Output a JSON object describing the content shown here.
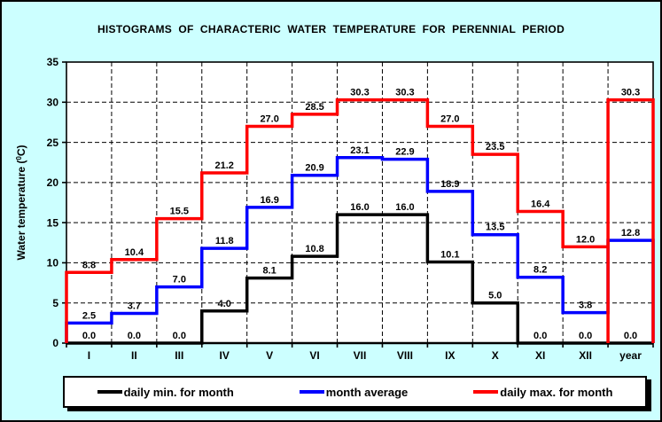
{
  "title": "HISTOGRAMS  OF  CHARACTERIC  WATER  TEMPERATURE  FOR  PERENNIAL  PERIOD",
  "chart_data": {
    "type": "line",
    "subtype": "step-histogram",
    "categories": [
      "I",
      "II",
      "III",
      "IV",
      "V",
      "VI",
      "VII",
      "VIII",
      "IX",
      "X",
      "XI",
      "XII",
      "year"
    ],
    "ylabel": "Water temperature (⁰C)",
    "ylim": [
      0,
      35
    ],
    "yticks": [
      0,
      5,
      10,
      15,
      20,
      25,
      30,
      35
    ],
    "grid": true,
    "legend_position": "bottom",
    "series": [
      {
        "name": "daily min. for month",
        "color": "#000000",
        "values": [
          0.0,
          0.0,
          0.0,
          4.0,
          8.1,
          10.8,
          16.0,
          16.0,
          10.1,
          5.0,
          0.0,
          0.0,
          0.0
        ]
      },
      {
        "name": "month average",
        "color": "#0000ff",
        "values": [
          2.5,
          3.7,
          7.0,
          11.8,
          16.9,
          20.9,
          23.1,
          22.9,
          18.9,
          13.5,
          8.2,
          3.8,
          12.8
        ]
      },
      {
        "name": "daily max. for month",
        "color": "#ff0000",
        "values": [
          8.8,
          10.4,
          15.5,
          21.2,
          27.0,
          28.5,
          30.3,
          30.3,
          27.0,
          23.5,
          16.4,
          12.0,
          30.3
        ],
        "year_box": true
      }
    ]
  },
  "colors": {
    "background": "#ccffff",
    "plot_background": "#ffffff",
    "grid": "#000000",
    "text": "#000000"
  }
}
